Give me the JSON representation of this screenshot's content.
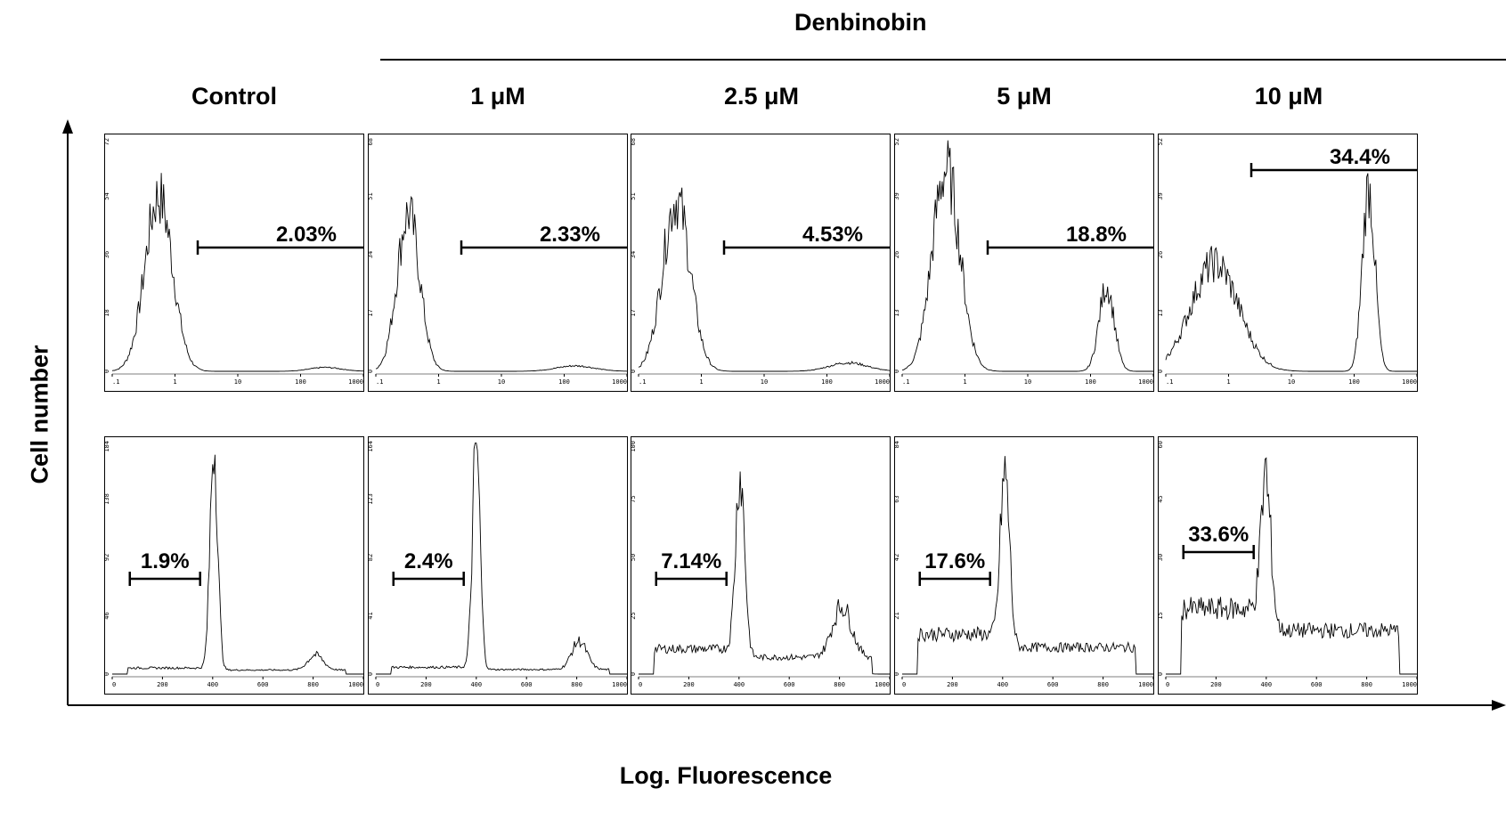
{
  "figure": {
    "treatment_label": "Denbinobin",
    "y_axis_label": "Cell number",
    "x_axis_label": "Log. Fluorescence",
    "columns": [
      "Control",
      "1 μM",
      "2.5 μM",
      "5 μM",
      "10 μM"
    ]
  },
  "chart_data": [
    {
      "type": "area",
      "row": "top",
      "x_scale": "log",
      "x_ticks": [
        ".1",
        "1",
        "10",
        "100",
        "1000"
      ],
      "panels": [
        {
          "column": "Control",
          "y_ticks": [
            "0",
            "18",
            "36",
            "54",
            "72"
          ],
          "ymax": 72,
          "gate_label": "2.03%",
          "gate_range": [
            2.3,
            1000
          ],
          "peaks": [
            {
              "center": 0.55,
              "height": 54,
              "width": 0.22
            },
            {
              "center": 250,
              "height": 1.2,
              "width": 0.25
            }
          ]
        },
        {
          "column": "1 μM",
          "y_ticks": [
            "0",
            "17",
            "34",
            "51",
            "68"
          ],
          "ymax": 68,
          "gate_label": "2.33%",
          "gate_range": [
            2.3,
            1000
          ],
          "peaks": [
            {
              "center": 0.33,
              "height": 46,
              "width": 0.18
            },
            {
              "center": 150,
              "height": 1.6,
              "width": 0.3
            }
          ]
        },
        {
          "column": "2.5 μM",
          "y_ticks": [
            "0",
            "17",
            "34",
            "51",
            "68"
          ],
          "ymax": 68,
          "gate_label": "4.53%",
          "gate_range": [
            2.3,
            1000
          ],
          "peaks": [
            {
              "center": 0.4,
              "height": 50,
              "width": 0.22
            },
            {
              "center": 220,
              "height": 2.5,
              "width": 0.3
            }
          ]
        },
        {
          "column": "5 μM",
          "y_ticks": [
            "0",
            "13",
            "26",
            "39",
            "52"
          ],
          "ymax": 52,
          "gate_label": "18.8%",
          "gate_range": [
            2.3,
            1000
          ],
          "peaks": [
            {
              "center": 0.5,
              "height": 45,
              "width": 0.22
            },
            {
              "center": 180,
              "height": 19,
              "width": 0.12
            }
          ]
        },
        {
          "column": "10 μM",
          "y_ticks": [
            "0",
            "13",
            "26",
            "39",
            "52"
          ],
          "ymax": 52,
          "gate_label": "34.4%",
          "gate_range": [
            2.3,
            1000
          ],
          "peaks": [
            {
              "center": 0.6,
              "height": 24,
              "width": 0.38
            },
            {
              "center": 170,
              "height": 41,
              "width": 0.1
            }
          ]
        }
      ]
    },
    {
      "type": "area",
      "row": "bottom",
      "x_scale": "linear",
      "x_ticks": [
        "0",
        "200",
        "400",
        "600",
        "800",
        "1000"
      ],
      "panels": [
        {
          "column": "Control",
          "y_ticks": [
            "0",
            "46",
            "92",
            "138",
            "184"
          ],
          "ymax": 184,
          "gate_label": "1.9%",
          "gate_range": [
            70,
            350
          ],
          "peaks": [
            {
              "center": 405,
              "height": 180,
              "width": 15
            },
            {
              "center": 810,
              "height": 12,
              "width": 30
            }
          ],
          "base": 4
        },
        {
          "column": "1 μM",
          "y_ticks": [
            "0",
            "41",
            "82",
            "123",
            "164"
          ],
          "ymax": 164,
          "gate_label": "2.4%",
          "gate_range": [
            70,
            350
          ],
          "peaks": [
            {
              "center": 400,
              "height": 160,
              "width": 15
            },
            {
              "center": 810,
              "height": 20,
              "width": 30
            }
          ],
          "base": 4
        },
        {
          "column": "2.5 μM",
          "y_ticks": [
            "0",
            "25",
            "50",
            "75",
            "100"
          ],
          "ymax": 100,
          "gate_label": "7.14%",
          "gate_range": [
            70,
            350
          ],
          "peaks": [
            {
              "center": 405,
              "height": 78,
              "width": 18
            },
            {
              "center": 810,
              "height": 22,
              "width": 38
            }
          ],
          "base": 9
        },
        {
          "column": "5 μM",
          "y_ticks": [
            "0",
            "21",
            "42",
            "63",
            "84"
          ],
          "ymax": 84,
          "gate_label": "17.6%",
          "gate_range": [
            70,
            350
          ],
          "peaks": [
            {
              "center": 410,
              "height": 62,
              "width": 18
            }
          ],
          "base": 12
        },
        {
          "column": "10 μM",
          "y_ticks": [
            "0",
            "15",
            "30",
            "45",
            "60"
          ],
          "ymax": 60,
          "gate_label": "33.6%",
          "gate_range": [
            70,
            350
          ],
          "peaks": [
            {
              "center": 400,
              "height": 36,
              "width": 20
            }
          ],
          "base": 14
        }
      ]
    }
  ]
}
